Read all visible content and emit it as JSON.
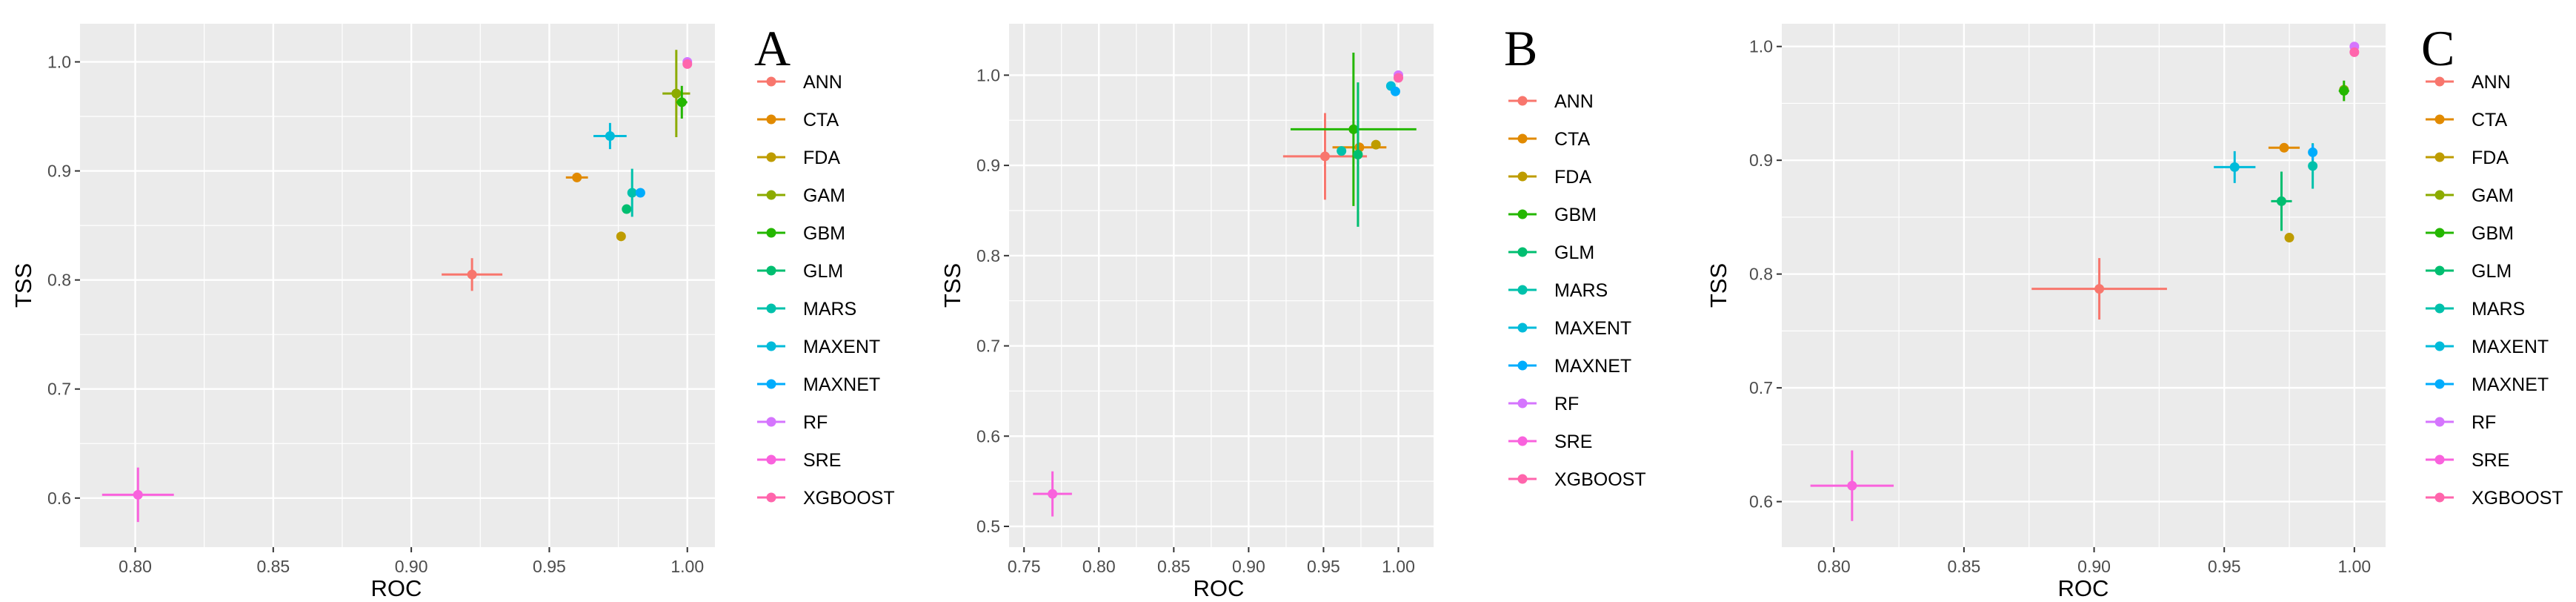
{
  "figure": {
    "model_names": [
      "ANN",
      "CTA",
      "FDA",
      "GAM",
      "GBM",
      "GLM",
      "MARS",
      "MAXENT",
      "MAXNET",
      "RF",
      "SRE",
      "XGBOOST"
    ],
    "colors": {
      "ANN": "#F8766D",
      "CTA": "#E18A00",
      "FDA": "#BE9C00",
      "GAM": "#8CAB00",
      "GBM": "#24B700",
      "GLM": "#00BE70",
      "MARS": "#00C1AB",
      "MAXENT": "#00BBDA",
      "MAXNET": "#00ACFC",
      "RF": "#D575FE",
      "SRE": "#F962DD",
      "XGBOOST": "#FF65AC"
    },
    "panel_background": "#EBEBEB"
  },
  "chart_data": [
    {
      "type": "scatter",
      "panel": "A",
      "xlabel": "ROC",
      "ylabel": "TSS",
      "xlim": [
        0.78,
        1.01
      ],
      "ylim": [
        0.555,
        1.035
      ],
      "xticks": [
        0.8,
        0.85,
        0.9,
        0.95,
        1.0
      ],
      "xtick_labels": [
        "0.80",
        "0.85",
        "0.90",
        "0.95",
        "1.00"
      ],
      "yticks": [
        0.6,
        0.7,
        0.8,
        0.9,
        1.0
      ],
      "ytick_labels": [
        "0.6",
        "0.7",
        "0.8",
        "0.9",
        "1.0"
      ],
      "legend": [
        "ANN",
        "CTA",
        "FDA",
        "GAM",
        "GBM",
        "GLM",
        "MARS",
        "MAXENT",
        "MAXNET",
        "RF",
        "SRE",
        "XGBOOST"
      ],
      "points": [
        {
          "model": "ANN",
          "x": 0.922,
          "y": 0.805,
          "xerr": 0.011,
          "yerr": 0.015
        },
        {
          "model": "CTA",
          "x": 0.96,
          "y": 0.894,
          "xerr": 0.004,
          "yerr": 0.004
        },
        {
          "model": "FDA",
          "x": 0.976,
          "y": 0.84,
          "xerr": 0.0,
          "yerr": 0.0
        },
        {
          "model": "GAM",
          "x": 0.996,
          "y": 0.971,
          "xerr": 0.005,
          "yerr": 0.04
        },
        {
          "model": "GBM",
          "x": 0.998,
          "y": 0.963,
          "xerr": 0.002,
          "yerr": 0.015
        },
        {
          "model": "GLM",
          "x": 0.978,
          "y": 0.865,
          "xerr": 0.0,
          "yerr": 0.0
        },
        {
          "model": "MARS",
          "x": 0.98,
          "y": 0.88,
          "xerr": 0.0,
          "yerr": 0.022
        },
        {
          "model": "MAXENT",
          "x": 0.972,
          "y": 0.932,
          "xerr": 0.006,
          "yerr": 0.012
        },
        {
          "model": "MAXNET",
          "x": 0.983,
          "y": 0.88,
          "xerr": 0.0,
          "yerr": 0.0
        },
        {
          "model": "RF",
          "x": 1.0,
          "y": 1.0,
          "xerr": 0.0,
          "yerr": 0.004
        },
        {
          "model": "SRE",
          "x": 0.801,
          "y": 0.603,
          "xerr": 0.013,
          "yerr": 0.025
        },
        {
          "model": "XGBOOST",
          "x": 1.0,
          "y": 0.998,
          "xerr": 0.0,
          "yerr": 0.0
        }
      ]
    },
    {
      "type": "scatter",
      "panel": "B",
      "xlabel": "ROC",
      "ylabel": "TSS",
      "xlim": [
        0.74,
        1.0235
      ],
      "ylim": [
        0.477,
        1.057
      ],
      "xticks": [
        0.75,
        0.8,
        0.85,
        0.9,
        0.95,
        1.0
      ],
      "xtick_labels": [
        "0.75",
        "0.80",
        "0.85",
        "0.90",
        "0.95",
        "1.00"
      ],
      "yticks": [
        0.5,
        0.6,
        0.7,
        0.8,
        0.9,
        1.0
      ],
      "ytick_labels": [
        "0.5",
        "0.6",
        "0.7",
        "0.8",
        "0.9",
        "1.0"
      ],
      "legend": [
        "ANN",
        "CTA",
        "FDA",
        "GBM",
        "GLM",
        "MARS",
        "MAXENT",
        "MAXNET",
        "RF",
        "SRE",
        "XGBOOST"
      ],
      "points": [
        {
          "model": "ANN",
          "x": 0.951,
          "y": 0.91,
          "xerr": 0.028,
          "yerr": 0.048
        },
        {
          "model": "CTA",
          "x": 0.974,
          "y": 0.92,
          "xerr": 0.018,
          "yerr": 0.0
        },
        {
          "model": "FDA",
          "x": 0.985,
          "y": 0.923,
          "xerr": 0.0,
          "yerr": 0.0
        },
        {
          "model": "GBM",
          "x": 0.97,
          "y": 0.94,
          "xerr": 0.042,
          "yerr": 0.085
        },
        {
          "model": "GLM",
          "x": 0.973,
          "y": 0.912,
          "xerr": 0.0,
          "yerr": 0.08
        },
        {
          "model": "MARS",
          "x": 0.962,
          "y": 0.916,
          "xerr": 0.0,
          "yerr": 0.0
        },
        {
          "model": "MAXENT",
          "x": 0.995,
          "y": 0.988,
          "xerr": 0.0,
          "yerr": 0.0
        },
        {
          "model": "MAXNET",
          "x": 0.998,
          "y": 0.982,
          "xerr": 0.0,
          "yerr": 0.0
        },
        {
          "model": "RF",
          "x": 1.0,
          "y": 1.0,
          "xerr": 0.0,
          "yerr": 0.0
        },
        {
          "model": "SRE",
          "x": 0.769,
          "y": 0.536,
          "xerr": 0.013,
          "yerr": 0.025
        },
        {
          "model": "XGBOOST",
          "x": 1.0,
          "y": 0.997,
          "xerr": 0.0,
          "yerr": 0.0
        }
      ]
    },
    {
      "type": "scatter",
      "panel": "C",
      "xlabel": "ROC",
      "ylabel": "TSS",
      "xlim": [
        0.78,
        1.012
      ],
      "ylim": [
        0.56,
        1.02
      ],
      "xticks": [
        0.8,
        0.85,
        0.9,
        0.95,
        1.0
      ],
      "xtick_labels": [
        "0.80",
        "0.85",
        "0.90",
        "0.95",
        "1.00"
      ],
      "yticks": [
        0.6,
        0.7,
        0.8,
        0.9,
        1.0
      ],
      "ytick_labels": [
        "0.6",
        "0.7",
        "0.8",
        "0.9",
        "1.0"
      ],
      "legend": [
        "ANN",
        "CTA",
        "FDA",
        "GAM",
        "GBM",
        "GLM",
        "MARS",
        "MAXENT",
        "MAXNET",
        "RF",
        "SRE",
        "XGBOOST"
      ],
      "points": [
        {
          "model": "ANN",
          "x": 0.902,
          "y": 0.787,
          "xerr": 0.026,
          "yerr": 0.027
        },
        {
          "model": "CTA",
          "x": 0.973,
          "y": 0.911,
          "xerr": 0.006,
          "yerr": 0.0
        },
        {
          "model": "FDA",
          "x": 0.975,
          "y": 0.832,
          "xerr": 0.0,
          "yerr": 0.0
        },
        {
          "model": "GAM",
          "x": 0.996,
          "y": 0.962,
          "xerr": 0.0,
          "yerr": 0.0
        },
        {
          "model": "GBM",
          "x": 0.996,
          "y": 0.961,
          "xerr": 0.002,
          "yerr": 0.009
        },
        {
          "model": "GLM",
          "x": 0.972,
          "y": 0.864,
          "xerr": 0.004,
          "yerr": 0.026
        },
        {
          "model": "MARS",
          "x": 0.984,
          "y": 0.895,
          "xerr": 0.0,
          "yerr": 0.02
        },
        {
          "model": "MAXENT",
          "x": 0.954,
          "y": 0.894,
          "xerr": 0.008,
          "yerr": 0.014
        },
        {
          "model": "MAXNET",
          "x": 0.984,
          "y": 0.907,
          "xerr": 0.0,
          "yerr": 0.007
        },
        {
          "model": "RF",
          "x": 1.0,
          "y": 1.0,
          "xerr": 0.0,
          "yerr": 0.0
        },
        {
          "model": "SRE",
          "x": 0.807,
          "y": 0.614,
          "xerr": 0.016,
          "yerr": 0.031
        },
        {
          "model": "XGBOOST",
          "x": 1.0,
          "y": 0.995,
          "xerr": 0.0,
          "yerr": 0.0
        }
      ]
    }
  ]
}
